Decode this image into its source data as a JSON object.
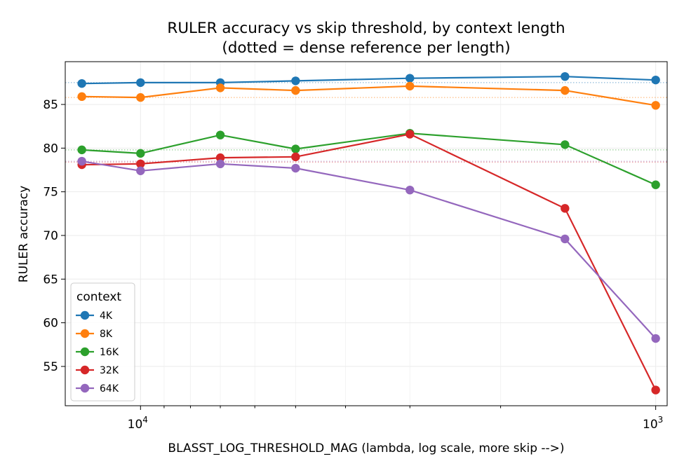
{
  "chart_data": {
    "type": "line",
    "title": "RULER accuracy vs skip threshold, by context length",
    "subtitle": "(dotted = dense reference per length)",
    "xlabel": "BLASST_LOG_THRESHOLD_MAG (lambda, log scale, more skip -->)",
    "ylabel": "RULER accuracy",
    "x_scale": "log",
    "x_reversed": true,
    "xlim": [
      14000,
      950
    ],
    "ylim": [
      50.5,
      89.9
    ],
    "x": [
      13000,
      10000,
      7000,
      5000,
      3000,
      1500,
      1000
    ],
    "x_major_ticks": [
      {
        "value": 10000,
        "base": "10",
        "exp": "4"
      },
      {
        "value": 1000,
        "base": "10",
        "exp": "3"
      }
    ],
    "x_minor_ticks": [
      9000,
      8000,
      7000,
      6000,
      5000,
      4000,
      3000,
      2000
    ],
    "y_ticks": [
      55,
      60,
      65,
      70,
      75,
      80,
      85
    ],
    "grid": true,
    "legend": {
      "title": "context",
      "location": "lower-left"
    },
    "series": [
      {
        "name": "4K",
        "color": "#1f77b4",
        "values": [
          87.4,
          87.5,
          87.5,
          87.7,
          88.0,
          88.2,
          87.8
        ],
        "reference": 87.5
      },
      {
        "name": "8K",
        "color": "#ff7f0e",
        "values": [
          85.9,
          85.8,
          86.9,
          86.6,
          87.1,
          86.6,
          84.9
        ],
        "reference": 85.8
      },
      {
        "name": "16K",
        "color": "#2ca02c",
        "values": [
          79.8,
          79.4,
          81.5,
          79.9,
          81.7,
          80.4,
          75.8
        ],
        "reference": 79.8
      },
      {
        "name": "32K",
        "color": "#d62728",
        "values": [
          78.1,
          78.2,
          78.9,
          79.0,
          81.6,
          73.1,
          52.3
        ],
        "reference": 78.4
      },
      {
        "name": "64K",
        "color": "#9467bd",
        "values": [
          78.5,
          77.4,
          78.2,
          77.7,
          75.2,
          69.6,
          58.2
        ],
        "reference": 78.5
      }
    ]
  }
}
